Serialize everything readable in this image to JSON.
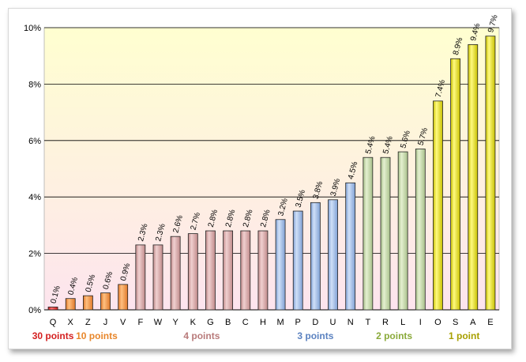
{
  "chart_data": {
    "type": "bar",
    "categories": [
      "Q",
      "X",
      "Z",
      "J",
      "V",
      "F",
      "W",
      "Y",
      "K",
      "G",
      "B",
      "C",
      "H",
      "M",
      "P",
      "D",
      "U",
      "N",
      "T",
      "R",
      "L",
      "I",
      "O",
      "S",
      "A",
      "E"
    ],
    "values": [
      0.1,
      0.4,
      0.5,
      0.6,
      0.9,
      2.3,
      2.3,
      2.6,
      2.7,
      2.8,
      2.8,
      2.8,
      2.8,
      3.2,
      3.5,
      3.8,
      3.9,
      4.5,
      5.4,
      5.4,
      5.6,
      5.7,
      7.4,
      8.9,
      9.4,
      9.7
    ],
    "value_labels": [
      "0.1%",
      "0.4%",
      "0.5%",
      "0.6%",
      "0.9%",
      "2.3%",
      "2.3%",
      "2.6%",
      "2.7%",
      "2.8%",
      "2.8%",
      "2.8%",
      "2.8%",
      "3.2%",
      "3.5%",
      "3.8%",
      "3.9%",
      "4.5%",
      "5.4%",
      "5.4%",
      "5.6%",
      "5.7%",
      "7.4%",
      "8.9%",
      "9.4%",
      "9.7%"
    ],
    "groups": [
      0,
      1,
      1,
      1,
      1,
      2,
      2,
      2,
      2,
      2,
      2,
      2,
      2,
      3,
      3,
      3,
      3,
      3,
      4,
      4,
      4,
      4,
      5,
      5,
      5,
      5
    ],
    "ylim": [
      0,
      10
    ],
    "y_ticks": [
      0,
      2,
      4,
      6,
      8,
      10
    ],
    "y_tick_labels": [
      "0%",
      "2%",
      "4%",
      "6%",
      "8%",
      "10%"
    ],
    "grid": true,
    "legend": [
      {
        "label": "30 points",
        "color": "#d42020",
        "first": 0,
        "last": 0
      },
      {
        "label": "10 points",
        "color": "#e8862a",
        "first": 1,
        "last": 4
      },
      {
        "label": "4 points",
        "color": "#b87a7a",
        "first": 5,
        "last": 12
      },
      {
        "label": "3 points",
        "color": "#5b82c0",
        "first": 13,
        "last": 17
      },
      {
        "label": "2 points",
        "color": "#8aaa3a",
        "first": 18,
        "last": 21
      },
      {
        "label": "1 point",
        "color": "#a8a000",
        "first": 22,
        "last": 25
      }
    ],
    "bar_colors": [
      {
        "fill": "#cc1f1f",
        "light": "#ff7070"
      },
      {
        "fill": "#e0782a",
        "light": "#ffc080"
      },
      {
        "fill": "#c08a8a",
        "light": "#f0d0d0"
      },
      {
        "fill": "#7fa0d4",
        "light": "#d0e0f8"
      },
      {
        "fill": "#a8c08a",
        "light": "#e4f0d0"
      },
      {
        "fill": "#c8c000",
        "light": "#fffa80"
      }
    ]
  }
}
